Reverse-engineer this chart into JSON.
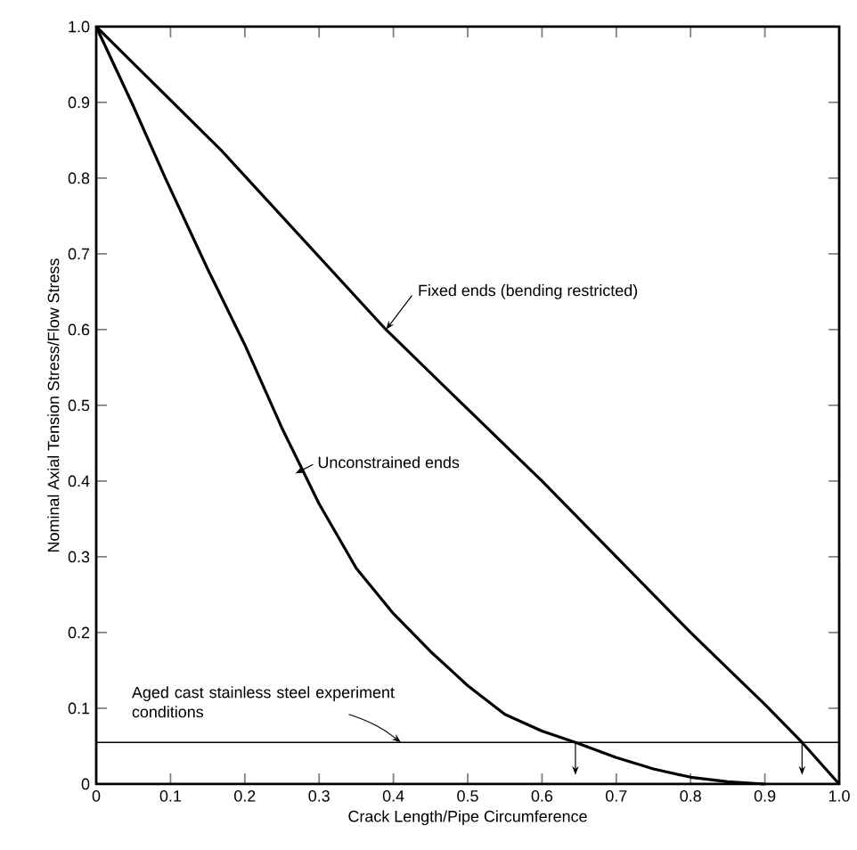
{
  "chart_data": {
    "type": "line",
    "xlabel": "Crack Length/Pipe Circumference",
    "ylabel": "Nominal Axial Tension Stress/Flow Stress",
    "xlim": [
      0,
      1
    ],
    "ylim": [
      0,
      1
    ],
    "xticks": [
      0,
      0.1,
      0.2,
      0.3,
      0.4,
      0.5,
      0.6,
      0.7,
      0.8,
      0.9,
      {
        "value": 1,
        "label": "1.0"
      }
    ],
    "yticks": [
      0,
      0.1,
      0.2,
      0.3,
      0.4,
      0.5,
      0.6,
      0.7,
      0.8,
      0.9,
      {
        "value": 1,
        "label": "1.0"
      }
    ],
    "grid": false,
    "marker": "none",
    "line_style": "solid",
    "series": [
      {
        "name": "Unconstrained ends",
        "color": "#000000",
        "x": [
          0,
          0.05,
          0.093,
          0.15,
          0.2,
          0.25,
          0.3,
          0.35,
          0.4,
          0.45,
          0.5,
          0.55,
          0.6,
          0.645,
          0.7,
          0.75,
          0.8,
          0.85,
          0.9
        ],
        "values": [
          1,
          0.895,
          0.8,
          0.68,
          0.58,
          0.47,
          0.37,
          0.285,
          0.225,
          0.175,
          0.13,
          0.092,
          0.07,
          0.055,
          0.035,
          0.02,
          0.009,
          0.003,
          0
        ]
      },
      {
        "name": "Fixed ends (bending restricted)",
        "color": "#000000",
        "x": [
          0,
          0.17,
          0.39,
          0.5,
          0.6,
          0.7,
          0.8,
          0.9,
          0.95,
          1
        ],
        "values": [
          1,
          0.835,
          0.6,
          0.495,
          0.4,
          0.3,
          0.2,
          0.105,
          0.055,
          0
        ]
      }
    ],
    "ref_lines": [
      {
        "axis": "y",
        "value": 0.055,
        "label": "Aged cast stainless steel experiment conditions",
        "color": "#000000",
        "line_style": "solid"
      }
    ]
  }
}
